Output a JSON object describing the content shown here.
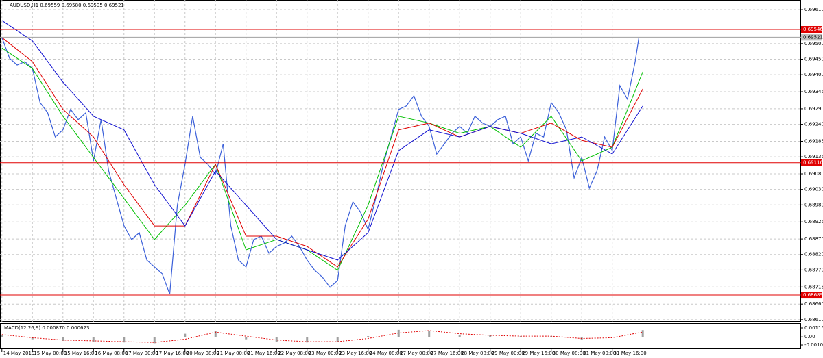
{
  "chart_data": [
    {
      "type": "line",
      "title": "AUDUSD,H1  0.69559 0.69580 0.69505 0.69521",
      "xlim": [
        -1,
        419
      ],
      "ylim": [
        0.68603,
        0.69641
      ],
      "xticks": [
        {
          "value": 0,
          "label": "14 May 2019"
        },
        {
          "value": 16,
          "label": "15 May 00:00"
        },
        {
          "value": 32,
          "label": "15 May 16:00"
        },
        {
          "value": 48,
          "label": "16 May 08:00"
        },
        {
          "value": 64,
          "label": "17 May 00:00"
        },
        {
          "value": 80,
          "label": "17 May 16:00"
        },
        {
          "value": 96,
          "label": "20 May 08:00"
        },
        {
          "value": 112,
          "label": "21 May 00:00"
        },
        {
          "value": 128,
          "label": "21 May 16:00"
        },
        {
          "value": 144,
          "label": "22 May 08:00"
        },
        {
          "value": 160,
          "label": "23 May 00:00"
        },
        {
          "value": 176,
          "label": "23 May 16:00"
        },
        {
          "value": 192,
          "label": "24 May 08:00"
        },
        {
          "value": 208,
          "label": "27 May 00:00"
        },
        {
          "value": 224,
          "label": "27 May 16:00"
        },
        {
          "value": 240,
          "label": "28 May 08:00"
        },
        {
          "value": 256,
          "label": "29 May 00:00"
        },
        {
          "value": 272,
          "label": "29 May 16:00"
        },
        {
          "value": 288,
          "label": "30 May 08:00"
        },
        {
          "value": 304,
          "label": "31 May 00:00"
        },
        {
          "value": 320,
          "label": "31 May 16:00"
        }
      ],
      "yticks": [
        {
          "value": 0.6961,
          "label": "0.69610"
        },
        {
          "value": 0.695,
          "label": "0.69500"
        },
        {
          "value": 0.6945,
          "label": "0.69450"
        },
        {
          "value": 0.694,
          "label": "0.69400"
        },
        0.69345,
        {
          "value": 0.6929,
          "label": "0.69290"
        },
        {
          "value": 0.6924,
          "label": "0.69240"
        },
        0.69185,
        0.69135,
        {
          "value": 0.6908,
          "label": "0.69080"
        },
        {
          "value": 0.6903,
          "label": "0.69030"
        },
        {
          "value": 0.6898,
          "label": "0.68980"
        },
        0.68925,
        {
          "value": 0.6887,
          "label": "0.68870"
        },
        {
          "value": 0.6882,
          "label": "0.68820"
        },
        {
          "value": 0.6877,
          "label": "0.68770"
        },
        0.68715,
        {
          "value": 0.6866,
          "label": "0.68660"
        },
        {
          "value": 0.6861,
          "label": "0.68610"
        }
      ],
      "grid": true,
      "series": [
        {
          "color": "#3a5fd9",
          "x": [
            0,
            4,
            8,
            12,
            16,
            20,
            24,
            28,
            32,
            36,
            40,
            44,
            48,
            52,
            56,
            60,
            64,
            68,
            72,
            76,
            80,
            84,
            88,
            92,
            96,
            100,
            104,
            108,
            112,
            116,
            120,
            124,
            128,
            132,
            136,
            140,
            144,
            148,
            152,
            156,
            160,
            164,
            168,
            172,
            176,
            180,
            184,
            188,
            192,
            196,
            200,
            204,
            208,
            212,
            216,
            220,
            224,
            228,
            232,
            236,
            240,
            244,
            248,
            252,
            256,
            260,
            264,
            268,
            272,
            276,
            280,
            284,
            288,
            292,
            296,
            300,
            304,
            308,
            312,
            316,
            320,
            324,
            328,
            332,
            334
          ],
          "values": [
            0.6952,
            0.69453,
            0.69431,
            0.69442,
            0.6942,
            0.6931,
            0.69277,
            0.69199,
            0.69222,
            0.69288,
            0.69255,
            0.69277,
            0.69122,
            0.69255,
            0.69089,
            0.69001,
            0.68913,
            0.68868,
            0.6889,
            0.68802,
            0.6878,
            0.68758,
            0.68692,
            0.68979,
            0.69111,
            0.69266,
            0.69133,
            0.69111,
            0.69078,
            0.69177,
            0.68913,
            0.68802,
            0.6878,
            0.68868,
            0.68879,
            0.68824,
            0.68846,
            0.68857,
            0.68879,
            0.68846,
            0.68802,
            0.68769,
            0.68747,
            0.68714,
            0.68736,
            0.68913,
            0.6899,
            0.68957,
            0.68901,
            0.69001,
            0.69111,
            0.69199,
            0.69288,
            0.69299,
            0.69332,
            0.69266,
            0.69233,
            0.69144,
            0.69177,
            0.69211,
            0.69233,
            0.69211,
            0.69266,
            0.69244,
            0.69233,
            0.69255,
            0.69266,
            0.69177,
            0.69199,
            0.69122,
            0.69211,
            0.69199,
            0.6931,
            0.69277,
            0.69222,
            0.69067,
            0.69133,
            0.69034,
            0.69089,
            0.69199,
            0.69155,
            0.69365,
            0.69321,
            0.69442,
            0.69521
          ]
        },
        {
          "color": "#00c000",
          "x": [
            0,
            16,
            32,
            48,
            64,
            80,
            96,
            112,
            128,
            144,
            160,
            176,
            192,
            208,
            224,
            240,
            256,
            272,
            288,
            304,
            320,
            336
          ],
          "values": [
            0.69486,
            0.6942,
            0.69266,
            0.69133,
            0.69001,
            0.68868,
            0.68979,
            0.69111,
            0.68835,
            0.68868,
            0.68835,
            0.68769,
            0.68979,
            0.69266,
            0.69244,
            0.69211,
            0.69233,
            0.69166,
            0.69266,
            0.69122,
            0.69166,
            0.69409
          ]
        },
        {
          "color": "#e00000",
          "x": [
            0,
            16,
            32,
            48,
            64,
            80,
            96,
            112,
            128,
            144,
            160,
            176,
            192,
            208,
            224,
            240,
            256,
            272,
            288,
            304,
            320,
            336
          ],
          "values": [
            0.6952,
            0.69442,
            0.69288,
            0.69199,
            0.69045,
            0.68912,
            0.68912,
            0.69111,
            0.68879,
            0.68879,
            0.68846,
            0.6878,
            0.68934,
            0.69222,
            0.69244,
            0.69199,
            0.69233,
            0.69211,
            0.69244,
            0.69188,
            0.69166,
            0.69354
          ]
        },
        {
          "color": "#1010d0",
          "x": [
            0,
            16,
            32,
            48,
            64,
            80,
            96,
            112,
            128,
            144,
            160,
            176,
            192,
            208,
            224,
            240,
            256,
            272,
            288,
            304,
            320,
            336
          ],
          "values": [
            0.69575,
            0.69509,
            0.69376,
            0.69266,
            0.69222,
            0.69045,
            0.68912,
            0.69089,
            0.68979,
            0.68868,
            0.68835,
            0.68802,
            0.6889,
            0.69155,
            0.69222,
            0.69199,
            0.69233,
            0.69211,
            0.69177,
            0.69199,
            0.69144,
            0.69299
          ]
        }
      ],
      "levels": [
        {
          "value": 0.69546,
          "label": "0.69546"
        },
        {
          "value": 0.69116,
          "label": "0.69116"
        },
        {
          "value": 0.68689,
          "label": "0.68689"
        }
      ],
      "level_color": "#e00000",
      "current_price": {
        "value": 0.69521,
        "label": "0.69521"
      }
    },
    {
      "type": "macd",
      "title": "MACD(12,26,9) 0.000870 0.000623",
      "xlim": [
        -1,
        419
      ],
      "ylim": [
        -0.00155,
        0.00176
      ],
      "yticks": [
        {
          "value": 0.00115,
          "label": "0.00115"
        },
        {
          "value": 0,
          "label": "0.00"
        },
        {
          "value": -0.00103,
          "label": "-0.00103"
        }
      ],
      "x": [
        0,
        16,
        32,
        48,
        64,
        80,
        96,
        112,
        128,
        144,
        160,
        176,
        192,
        208,
        224,
        240,
        256,
        272,
        288,
        304,
        320,
        336
      ],
      "series": [
        {
          "color": "#a0a0a0",
          "values": [
            0.0002,
            -0.0003,
            -0.0005,
            -0.0006,
            -0.0007,
            -0.0008,
            0.0004,
            0.0008,
            -0.0003,
            -0.0006,
            -0.0007,
            -0.0006,
            0.0001,
            0.0009,
            0.0008,
            0.0002,
            0.0002,
            0.0001,
            0.0001,
            -0.0004,
            0,
            0.00087
          ]
        },
        {
          "color": "#e00000",
          "values": [
            0.0003,
            -0.0001,
            -0.0004,
            -0.0005,
            -0.0006,
            -0.0007,
            -0.0003,
            0.0006,
            0.0001,
            -0.0004,
            -0.0006,
            -0.0006,
            -0.0002,
            0.0005,
            0.0008,
            0.0004,
            0.0002,
            0.0001,
            0.0001,
            -0.0002,
            -0.0001,
            0.000623
          ]
        }
      ]
    }
  ]
}
